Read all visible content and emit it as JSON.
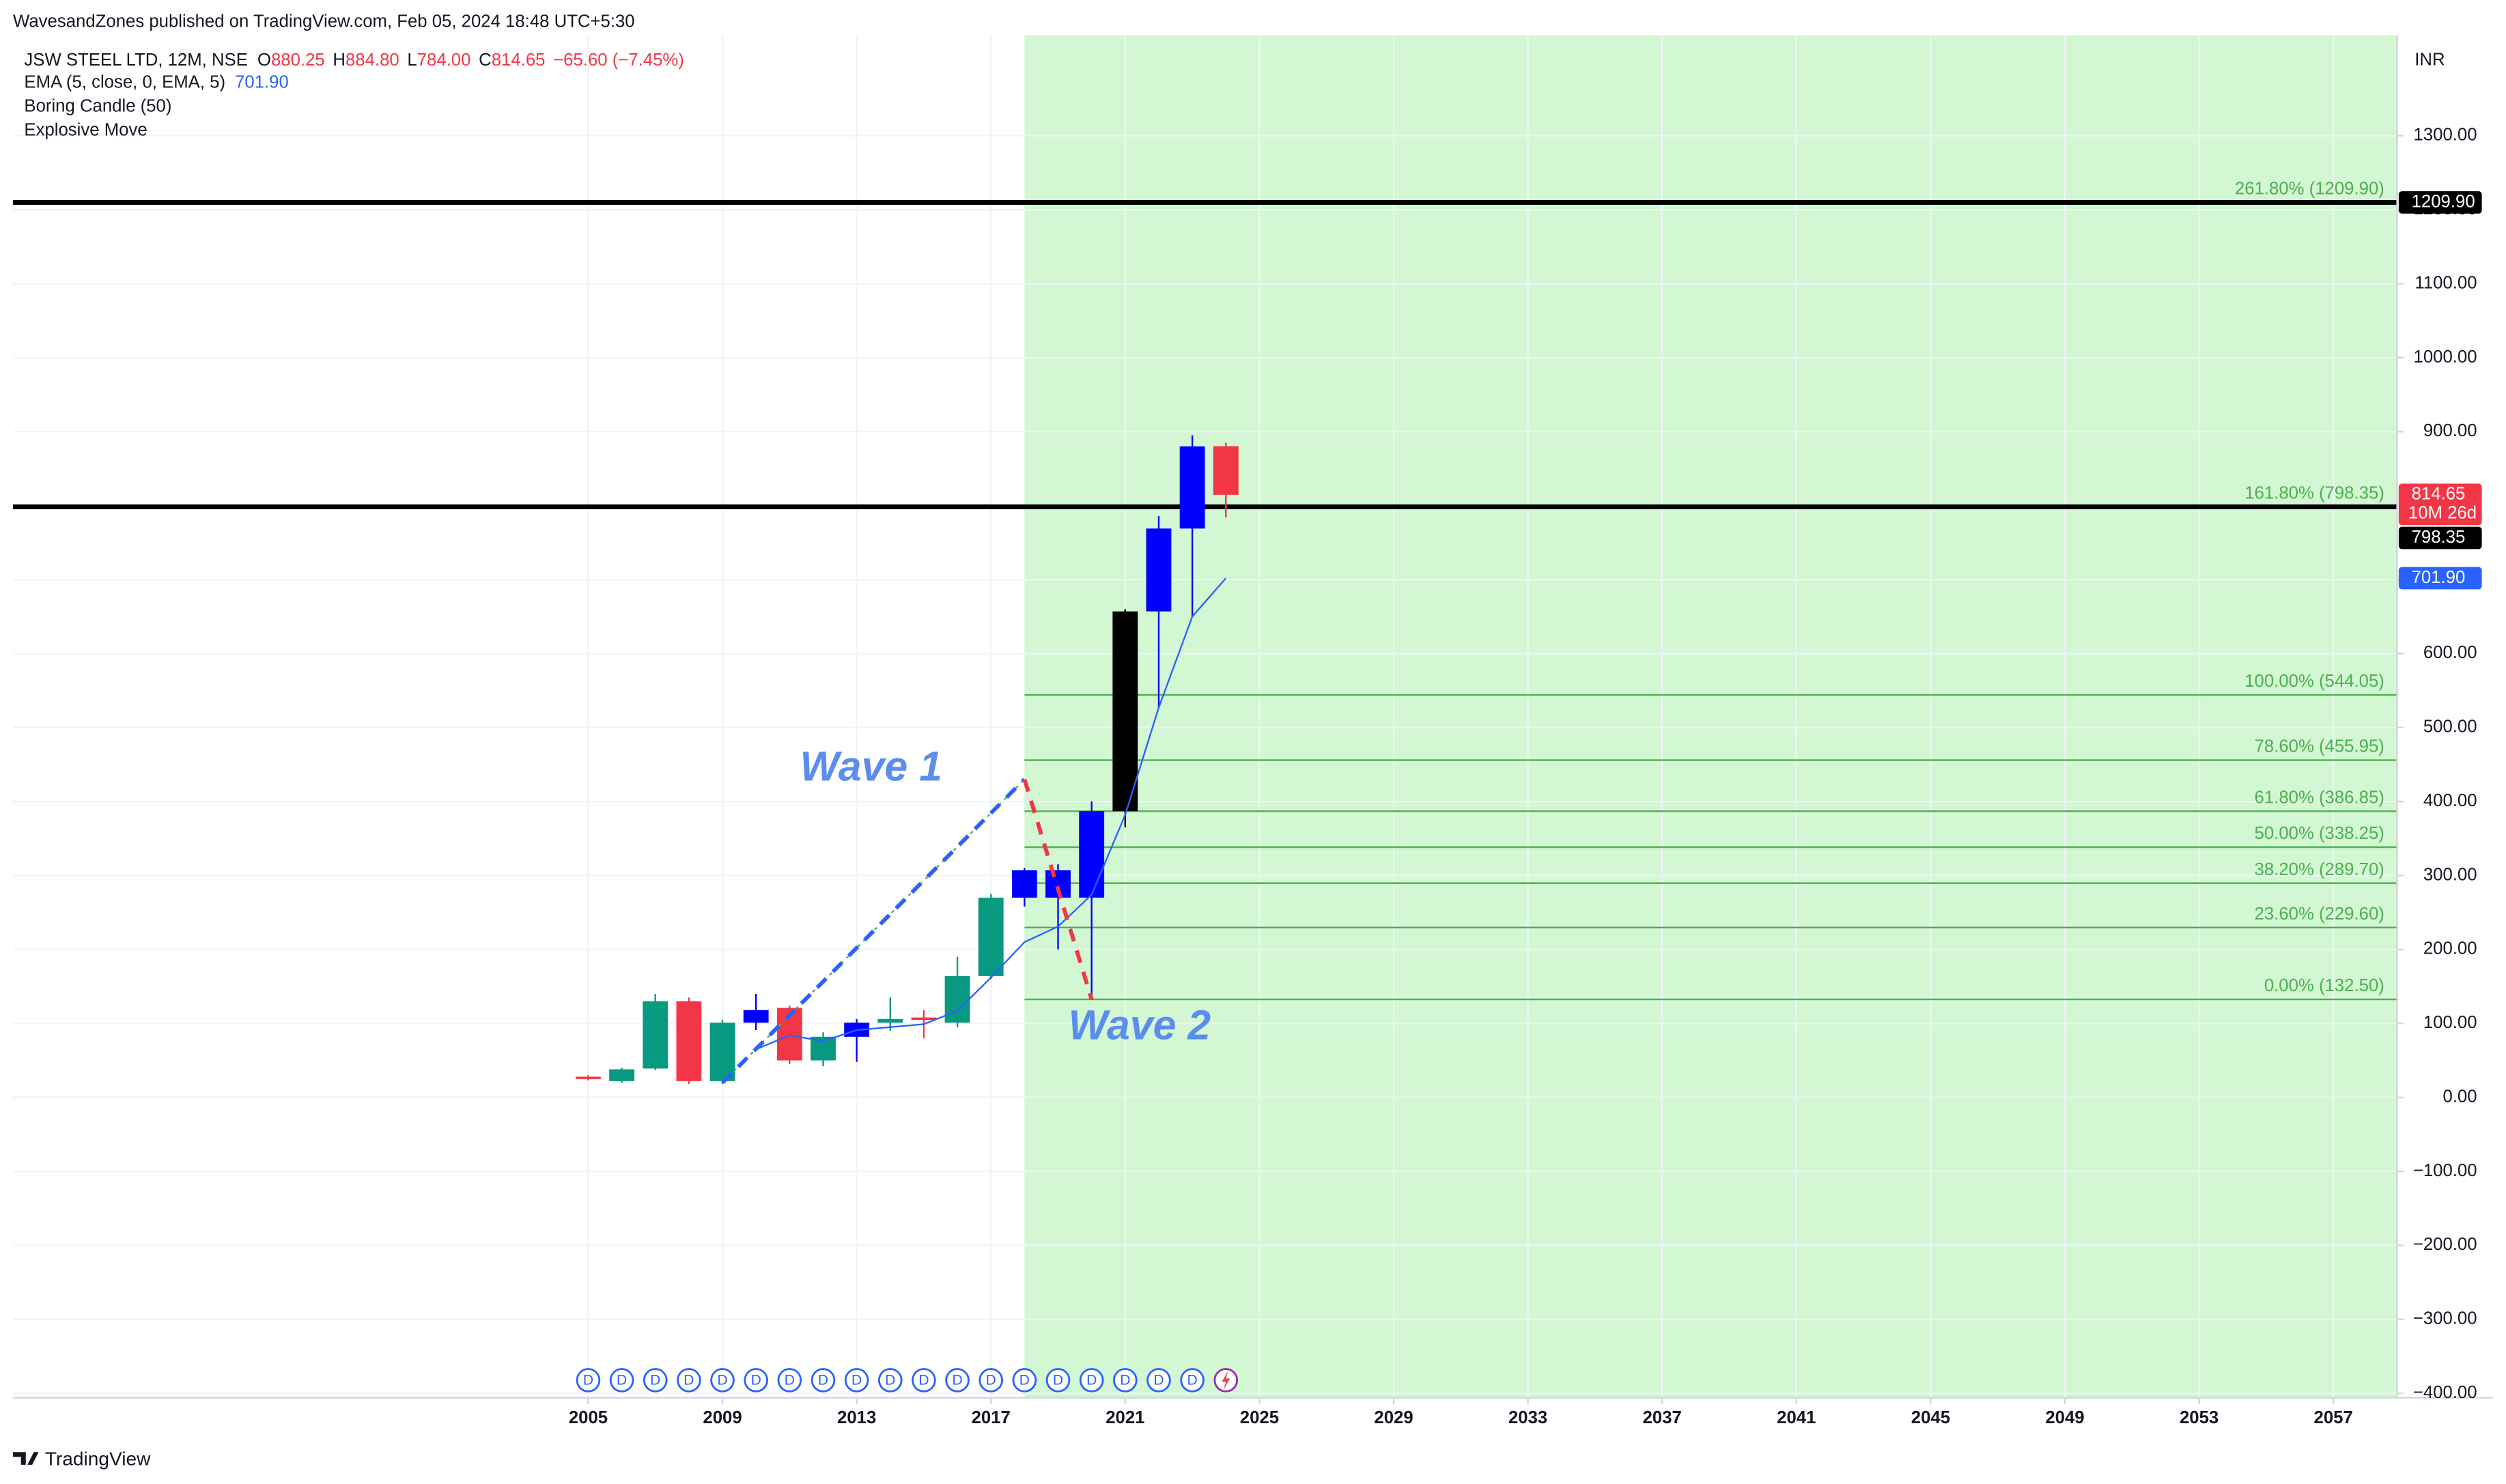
{
  "header": {
    "published": "WavesandZones published on TradingView.com, Feb 05, 2024 18:48 UTC+5:30",
    "brand": "TradingView"
  },
  "chart_data": {
    "type": "candlestick",
    "title": "JSW STEEL LTD, 12M, NSE",
    "legend": {
      "ohlc": [
        {
          "k": "O",
          "v": "880.25"
        },
        {
          "k": "H",
          "v": "884.80"
        },
        {
          "k": "L",
          "v": "784.00"
        },
        {
          "k": "C",
          "v": "814.65"
        }
      ],
      "change": "−65.60 (−7.45%)",
      "indicators": [
        "Boring Candle (50)",
        "Explosive Move"
      ]
    },
    "currency": "INR",
    "x": [
      2005,
      2006,
      2007,
      2008,
      2009,
      2010,
      2011,
      2012,
      2013,
      2014,
      2015,
      2016,
      2017,
      2018,
      2019,
      2020,
      2021,
      2022,
      2023,
      2024
    ],
    "open": [
      28,
      22,
      39,
      130,
      22,
      101,
      121,
      50,
      82,
      101,
      108,
      101,
      164,
      270,
      307,
      270,
      387,
      657,
      769,
      880.25
    ],
    "high": [
      30,
      40,
      140,
      135,
      105,
      140,
      124,
      88,
      106,
      135,
      118,
      190,
      275,
      310,
      315,
      400,
      660,
      786,
      895,
      884.8
    ],
    "low": [
      23,
      20,
      37,
      18,
      18,
      91,
      45,
      42,
      48,
      90,
      80,
      95,
      160,
      258,
      200,
      132.5,
      365,
      527,
      650,
      784
    ],
    "close": [
      25,
      38,
      130,
      22,
      101,
      118,
      50,
      82,
      101,
      106,
      105,
      164,
      270,
      307,
      270,
      387,
      657,
      769,
      880,
      814.65
    ],
    "colors": [
      "#f23645",
      "#089981",
      "#089981",
      "#f23645",
      "#089981",
      "#0000ff",
      "#f23645",
      "#089981",
      "#0000ff",
      "#089981",
      "#f23645",
      "#089981",
      "#089981",
      "#0000ff",
      "#0000ff",
      "#0000ff",
      "#000000",
      "#0000ff",
      "#0000ff",
      "#f23645"
    ],
    "ema": {
      "name": "EMA (5, close, 0, EMA, 5)",
      "color": "#2962ff",
      "value_label": "701.90",
      "last": 701.9,
      "x": [
        2010,
        2011,
        2012,
        2013,
        2014,
        2015,
        2016,
        2017,
        2018,
        2019,
        2020,
        2021,
        2022,
        2023,
        2024
      ],
      "values": [
        65,
        84,
        76,
        91,
        95,
        99,
        117,
        162,
        210,
        231,
        274,
        382,
        527,
        650,
        701.9
      ]
    },
    "last_price": {
      "value": 814.65,
      "label": "814.65",
      "countdown": "10M 26d",
      "color": "#f23645"
    },
    "hlines": [
      {
        "value": 1209.9,
        "label": "1209.90"
      },
      {
        "value": 798.35,
        "label": "798.35"
      }
    ],
    "fib": {
      "x_start": 2018,
      "color": "#4caf50",
      "fill": "#d2f7d2",
      "levels": [
        {
          "value": 1209.9,
          "label": "261.80% (1209.90)"
        },
        {
          "value": 798.35,
          "label": "161.80% (798.35)"
        },
        {
          "value": 544.05,
          "label": "100.00% (544.05)"
        },
        {
          "value": 455.95,
          "label": "78.60% (455.95)"
        },
        {
          "value": 386.85,
          "label": "61.80% (386.85)"
        },
        {
          "value": 338.25,
          "label": "50.00% (338.25)"
        },
        {
          "value": 289.7,
          "label": "38.20% (289.70)"
        },
        {
          "value": 229.6,
          "label": "23.60% (229.60)"
        },
        {
          "value": 132.5,
          "label": "0.00% (132.50)"
        }
      ]
    },
    "waves": [
      {
        "label": "Wave 1",
        "color": "#2962ff",
        "x": [
          2009,
          2018
        ],
        "y": [
          20,
          430
        ]
      },
      {
        "label": "Wave 2",
        "color": "#f23645",
        "x": [
          2018,
          2020
        ],
        "y": [
          430,
          132.5
        ]
      }
    ],
    "events": {
      "label": "D",
      "x": [
        2005,
        2006,
        2007,
        2008,
        2009,
        2010,
        2011,
        2012,
        2013,
        2014,
        2015,
        2016,
        2017,
        2018,
        2019,
        2020,
        2021,
        2022,
        2023
      ]
    },
    "xlim": [
      1987.86,
      2058.9
    ],
    "xticks": [
      2005,
      2009,
      2013,
      2017,
      2021,
      2025,
      2029,
      2033,
      2037,
      2041,
      2045,
      2049,
      2053,
      2057
    ],
    "ylim": [
      -406,
      1436
    ],
    "yticks": [
      {
        "value": -400,
        "label": "−400.00"
      },
      {
        "value": -300,
        "label": "−300.00"
      },
      {
        "value": -200,
        "label": "−200.00"
      },
      {
        "value": -100,
        "label": "−100.00"
      },
      {
        "value": 0,
        "label": "0.00"
      },
      {
        "value": 100,
        "label": "100.00"
      },
      {
        "value": 200,
        "label": "200.00"
      },
      {
        "value": 300,
        "label": "300.00"
      },
      {
        "value": 400,
        "label": "400.00"
      },
      {
        "value": 500,
        "label": "500.00"
      },
      {
        "value": 600,
        "label": "600.00"
      },
      {
        "value": 700,
        "label": "700.00"
      },
      {
        "value": 800,
        "label": "800.00"
      },
      {
        "value": 900,
        "label": "900.00"
      },
      {
        "value": 1000,
        "label": "1000.00"
      },
      {
        "value": 1100,
        "label": "1100.00"
      },
      {
        "value": 1200,
        "label": "1200.00"
      },
      {
        "value": 1300,
        "label": "1300.00"
      }
    ],
    "grid": true
  }
}
